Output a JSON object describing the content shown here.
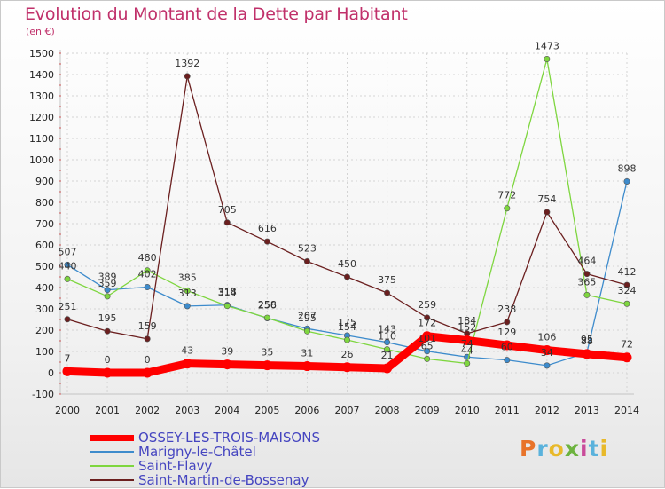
{
  "title": "Evolution du Montant de la Dette par Habitant",
  "unit_label": "(en €)",
  "logo": {
    "text": "Proxiti",
    "colors": [
      "#e8732a",
      "#5ab2dc",
      "#e8b92a",
      "#6db33f",
      "#c94b9a",
      "#5ab2dc",
      "#e8b92a"
    ]
  },
  "chart_data": {
    "type": "line",
    "title": "Evolution du Montant de la Dette par Habitant",
    "ylabel": "(en €)",
    "xlabel": "",
    "x": [
      "2000",
      "2001",
      "2002",
      "2003",
      "2004",
      "2005",
      "2006",
      "2007",
      "2008",
      "2009",
      "2010",
      "2011",
      "2012",
      "2013",
      "2014"
    ],
    "ylim": [
      -100,
      1500
    ],
    "yticks": [
      -100,
      0,
      100,
      200,
      300,
      400,
      500,
      600,
      700,
      800,
      900,
      1000,
      1100,
      1200,
      1300,
      1400,
      1500
    ],
    "grid": true,
    "legend_position": "bottom-left",
    "series": [
      {
        "name": "OSSEY-LES-TROIS-MAISONS",
        "color": "#ff0000",
        "values": [
          7,
          0,
          0,
          43,
          39,
          35,
          31,
          26,
          21,
          172,
          152,
          129,
          106,
          88,
          72
        ]
      },
      {
        "name": "Marigny-le-Châtel",
        "color": "#3d8bcc",
        "values": [
          507,
          389,
          402,
          313,
          318,
          256,
          207,
          175,
          143,
          101,
          74,
          60,
          34,
          95,
          898
        ]
      },
      {
        "name": "Saint-Flavy",
        "color": "#7ed63f",
        "values": [
          440,
          359,
          480,
          385,
          314,
          258,
          195,
          154,
          110,
          65,
          44,
          772,
          1473,
          365,
          324
        ]
      },
      {
        "name": "Saint-Martin-de-Bossenay",
        "color": "#6b1f1f",
        "values": [
          251,
          195,
          159,
          1392,
          705,
          616,
          523,
          450,
          375,
          259,
          184,
          238,
          754,
          464,
          412
        ]
      }
    ],
    "data_labels": [
      [
        "7",
        "0",
        "0",
        "43",
        "39",
        "35",
        "31",
        "26",
        "21",
        "172",
        "152",
        "129",
        "106",
        "88",
        "72"
      ],
      [
        "507",
        "389",
        "402",
        "313",
        "318",
        "256",
        "207",
        "175",
        "143",
        "101",
        "74",
        "60",
        "34",
        "95",
        "898"
      ],
      [
        "440",
        "359",
        "480",
        "385",
        "314",
        "258",
        "195",
        "154",
        "110",
        "65",
        "44",
        "772",
        "1473",
        "365",
        "324"
      ],
      [
        "251",
        "195",
        "159",
        "1392",
        "705",
        "616",
        "523",
        "450",
        "375",
        "259",
        "184",
        "238",
        "754",
        "464",
        "412"
      ]
    ]
  }
}
